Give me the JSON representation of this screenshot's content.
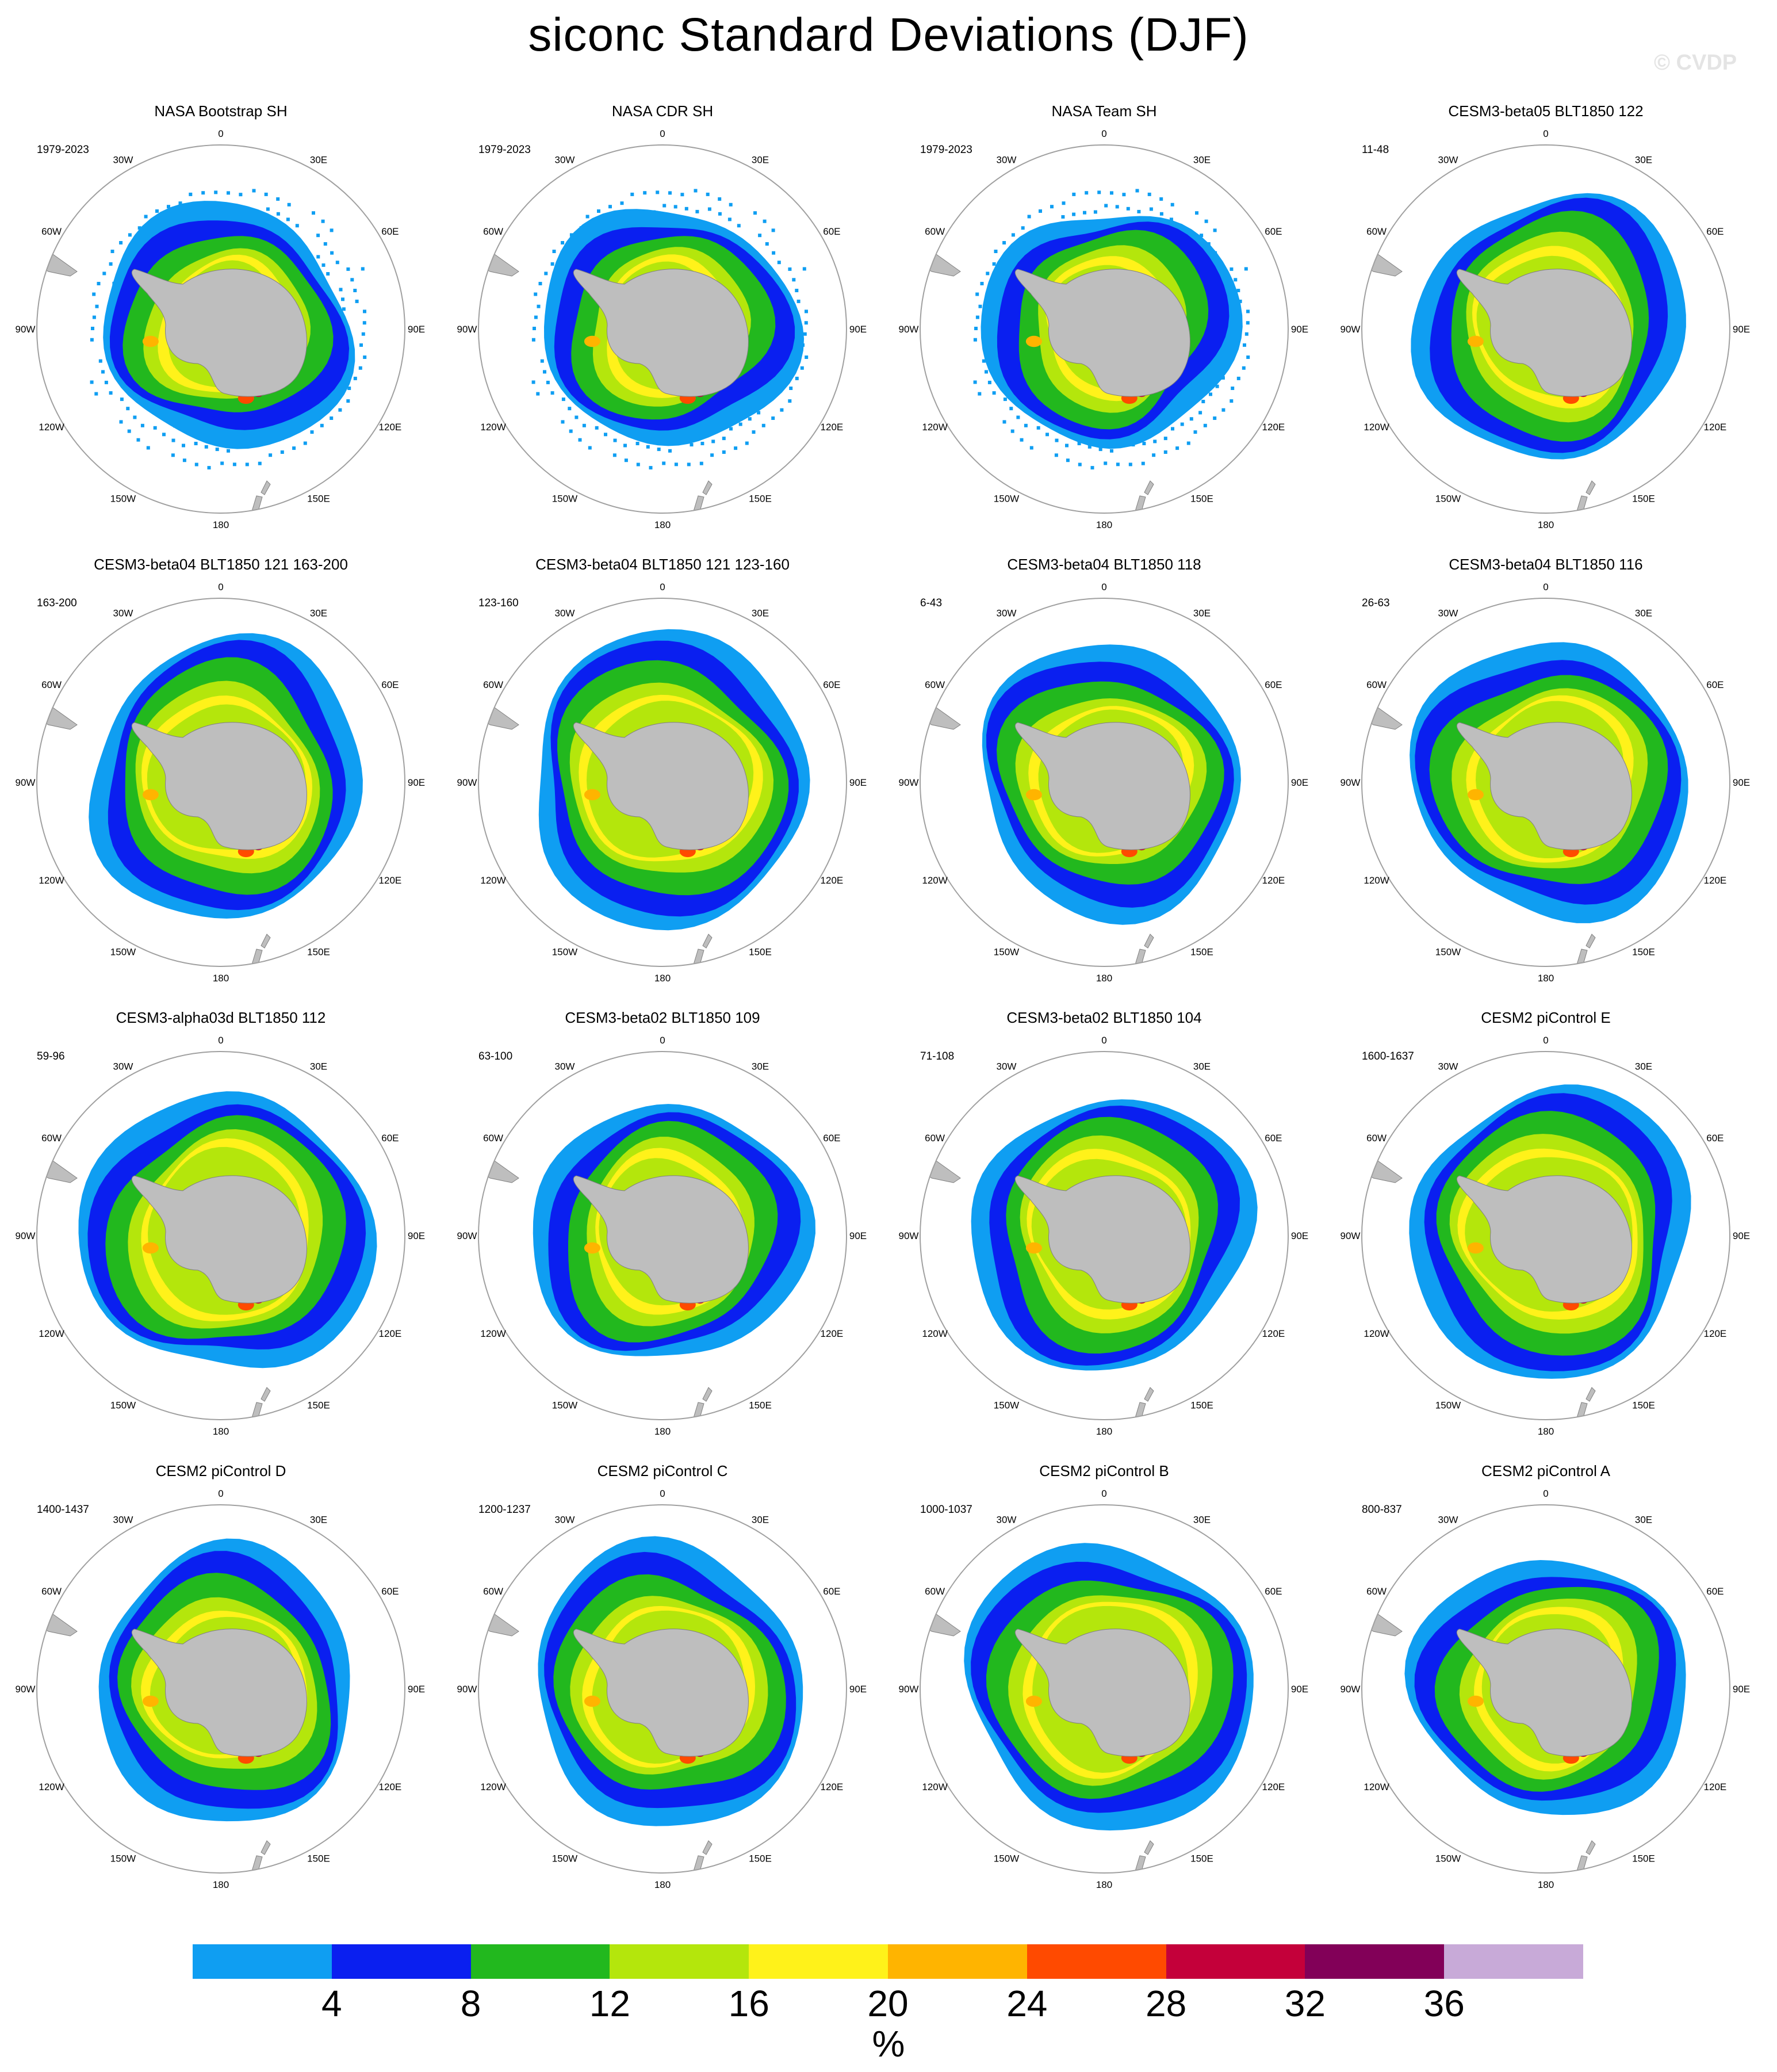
{
  "title": "siconc Standard Deviations (DJF)",
  "watermark": "© CVDP",
  "longitude_labels": [
    "0",
    "30E",
    "60E",
    "90E",
    "120E",
    "150E",
    "180",
    "150W",
    "120W",
    "90W",
    "60W",
    "30W"
  ],
  "panels": [
    {
      "title": "NASA Bootstrap SH",
      "years": "1979-2023",
      "kind": "obs"
    },
    {
      "title": "NASA CDR SH",
      "years": "1979-2023",
      "kind": "obs"
    },
    {
      "title": "NASA Team SH",
      "years": "1979-2023",
      "kind": "obs"
    },
    {
      "title": "CESM3-beta05 BLT1850 122",
      "years": "11-48",
      "kind": "model"
    },
    {
      "title": "CESM3-beta04 BLT1850 121 163-200",
      "years": "163-200",
      "kind": "model"
    },
    {
      "title": "CESM3-beta04 BLT1850 121 123-160",
      "years": "123-160",
      "kind": "model"
    },
    {
      "title": "CESM3-beta04 BLT1850 118",
      "years": "6-43",
      "kind": "model"
    },
    {
      "title": "CESM3-beta04 BLT1850 116",
      "years": "26-63",
      "kind": "model"
    },
    {
      "title": "CESM3-alpha03d BLT1850 112",
      "years": "59-96",
      "kind": "model"
    },
    {
      "title": "CESM3-beta02 BLT1850 109",
      "years": "63-100",
      "kind": "model"
    },
    {
      "title": "CESM3-beta02 BLT1850 104",
      "years": "71-108",
      "kind": "model"
    },
    {
      "title": "CESM2 piControl E",
      "years": "1600-1637",
      "kind": "model"
    },
    {
      "title": "CESM2 piControl D",
      "years": "1400-1437",
      "kind": "model"
    },
    {
      "title": "CESM2 piControl C",
      "years": "1200-1237",
      "kind": "model"
    },
    {
      "title": "CESM2 piControl B",
      "years": "1000-1037",
      "kind": "model"
    },
    {
      "title": "CESM2 piControl A",
      "years": "800-837",
      "kind": "model"
    }
  ],
  "colorbar": {
    "units": "%",
    "labels": [
      "4",
      "8",
      "12",
      "16",
      "20",
      "24",
      "28",
      "32",
      "36"
    ],
    "colors": [
      "#0f9ef2",
      "#0a1ff0",
      "#22b81e",
      "#b4e60c",
      "#fff21a",
      "#ffb400",
      "#ff4a00",
      "#c4003a",
      "#820058",
      "#c8aad8"
    ]
  },
  "land_color": "#bebebe",
  "frame_color": "#a0a0a0"
}
